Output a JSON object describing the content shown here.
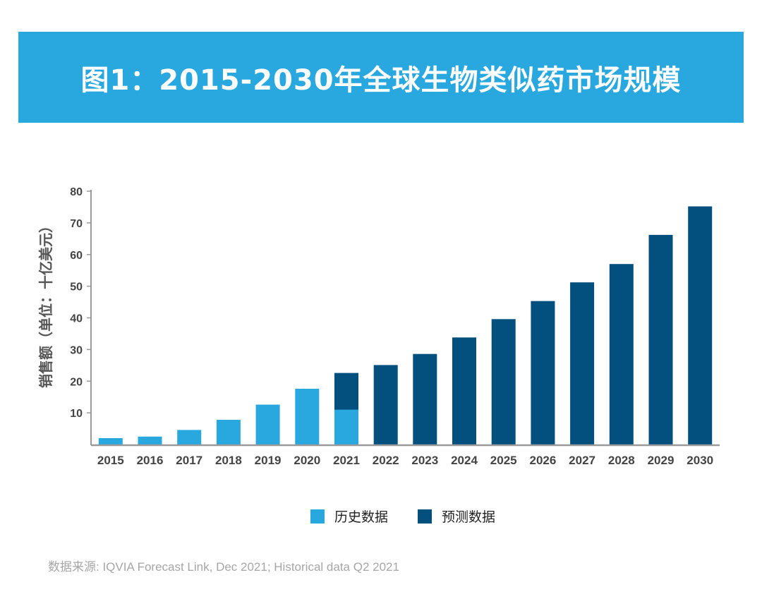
{
  "title": "图1：2015-2030年全球生物类似药市场规模",
  "source": "数据来源: IQVIA Forecast Link, Dec 2021; Historical data Q2 2021",
  "colors": {
    "banner": "#29a8df",
    "historical": "#29a8df",
    "forecast": "#03507f",
    "axis": "#9a9a9a",
    "tick_text": "#444444"
  },
  "legend": [
    {
      "label": "历史数据",
      "color_key": "historical"
    },
    {
      "label": "预测数据",
      "color_key": "forecast"
    }
  ],
  "chart_data": {
    "type": "bar",
    "title": "图1：2015-2030年全球生物类似药市场规模",
    "xlabel": "",
    "ylabel": "销售额（单位：十亿美元）",
    "ylim": [
      0,
      80
    ],
    "yticks": [
      10,
      20,
      30,
      40,
      50,
      60,
      70,
      80
    ],
    "grid": false,
    "legend_position": "bottom-center",
    "stacked": true,
    "categories": [
      "2015",
      "2016",
      "2017",
      "2018",
      "2019",
      "2020",
      "2021",
      "2022",
      "2023",
      "2024",
      "2025",
      "2026",
      "2027",
      "2028",
      "2029",
      "2030"
    ],
    "series": [
      {
        "name": "历史数据",
        "color_key": "historical",
        "values": [
          2,
          2.5,
          4.6,
          7.8,
          12.6,
          17.6,
          11,
          0,
          0,
          0,
          0,
          0,
          0,
          0,
          0,
          0
        ]
      },
      {
        "name": "预测数据",
        "color_key": "forecast",
        "values": [
          0,
          0,
          0,
          0,
          0,
          0,
          11.6,
          25.1,
          28.6,
          33.8,
          39.6,
          45.3,
          51.2,
          57,
          66.2,
          75.2
        ]
      }
    ]
  }
}
